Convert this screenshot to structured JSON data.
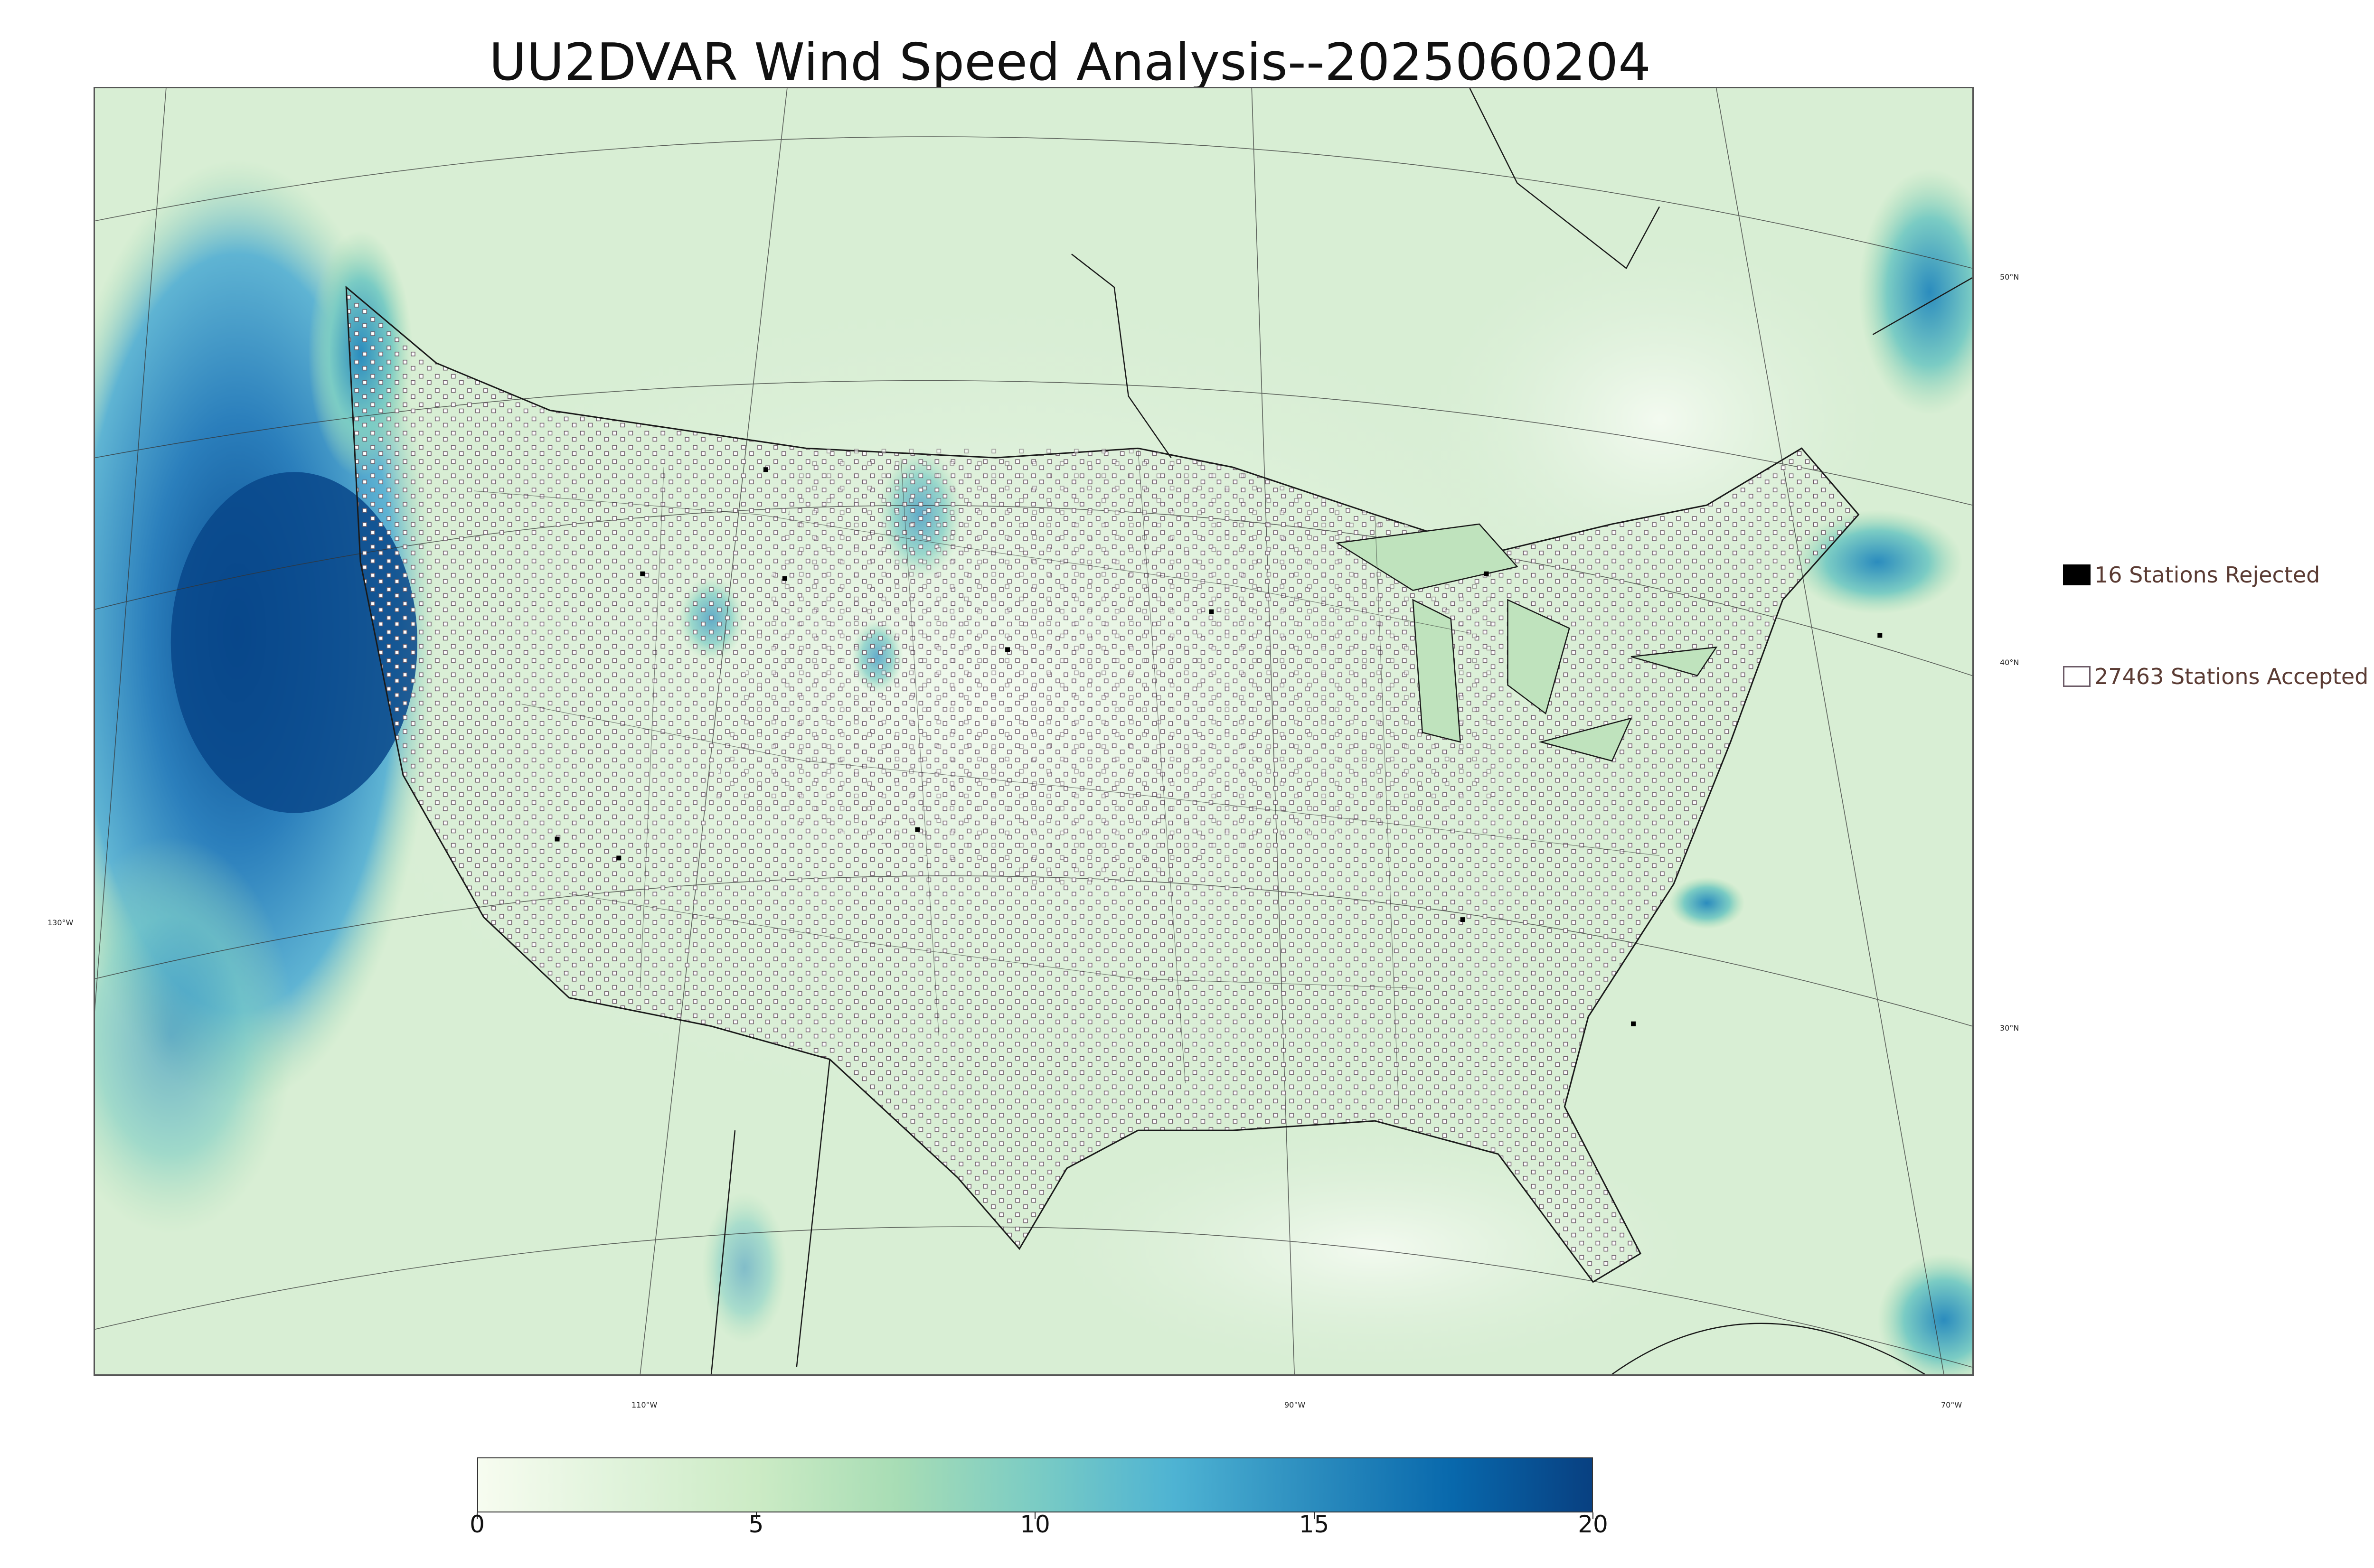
{
  "title": "UU2DVAR Wind Speed Analysis--2025060204",
  "legend": {
    "rejected": {
      "label": "16 Stations Rejected",
      "color": "#000000"
    },
    "accepted": {
      "label": "27463 Stations Accepted",
      "color": "#ffffff"
    }
  },
  "graticule": {
    "lat_labels": [
      "50°N",
      "40°N",
      "30°N"
    ],
    "lon_labels": [
      "130°W",
      "110°W",
      "90°W",
      "70°W"
    ]
  },
  "colorbar": {
    "min": 0,
    "max": 20,
    "ticks": [
      "0",
      "5",
      "10",
      "15",
      "20"
    ],
    "palette": [
      "#f7fcf0",
      "#e0f3db",
      "#ccebc5",
      "#a8ddb5",
      "#7bccc4",
      "#4eb3d3",
      "#2b8cbe",
      "#0868ac",
      "#084081"
    ]
  }
}
